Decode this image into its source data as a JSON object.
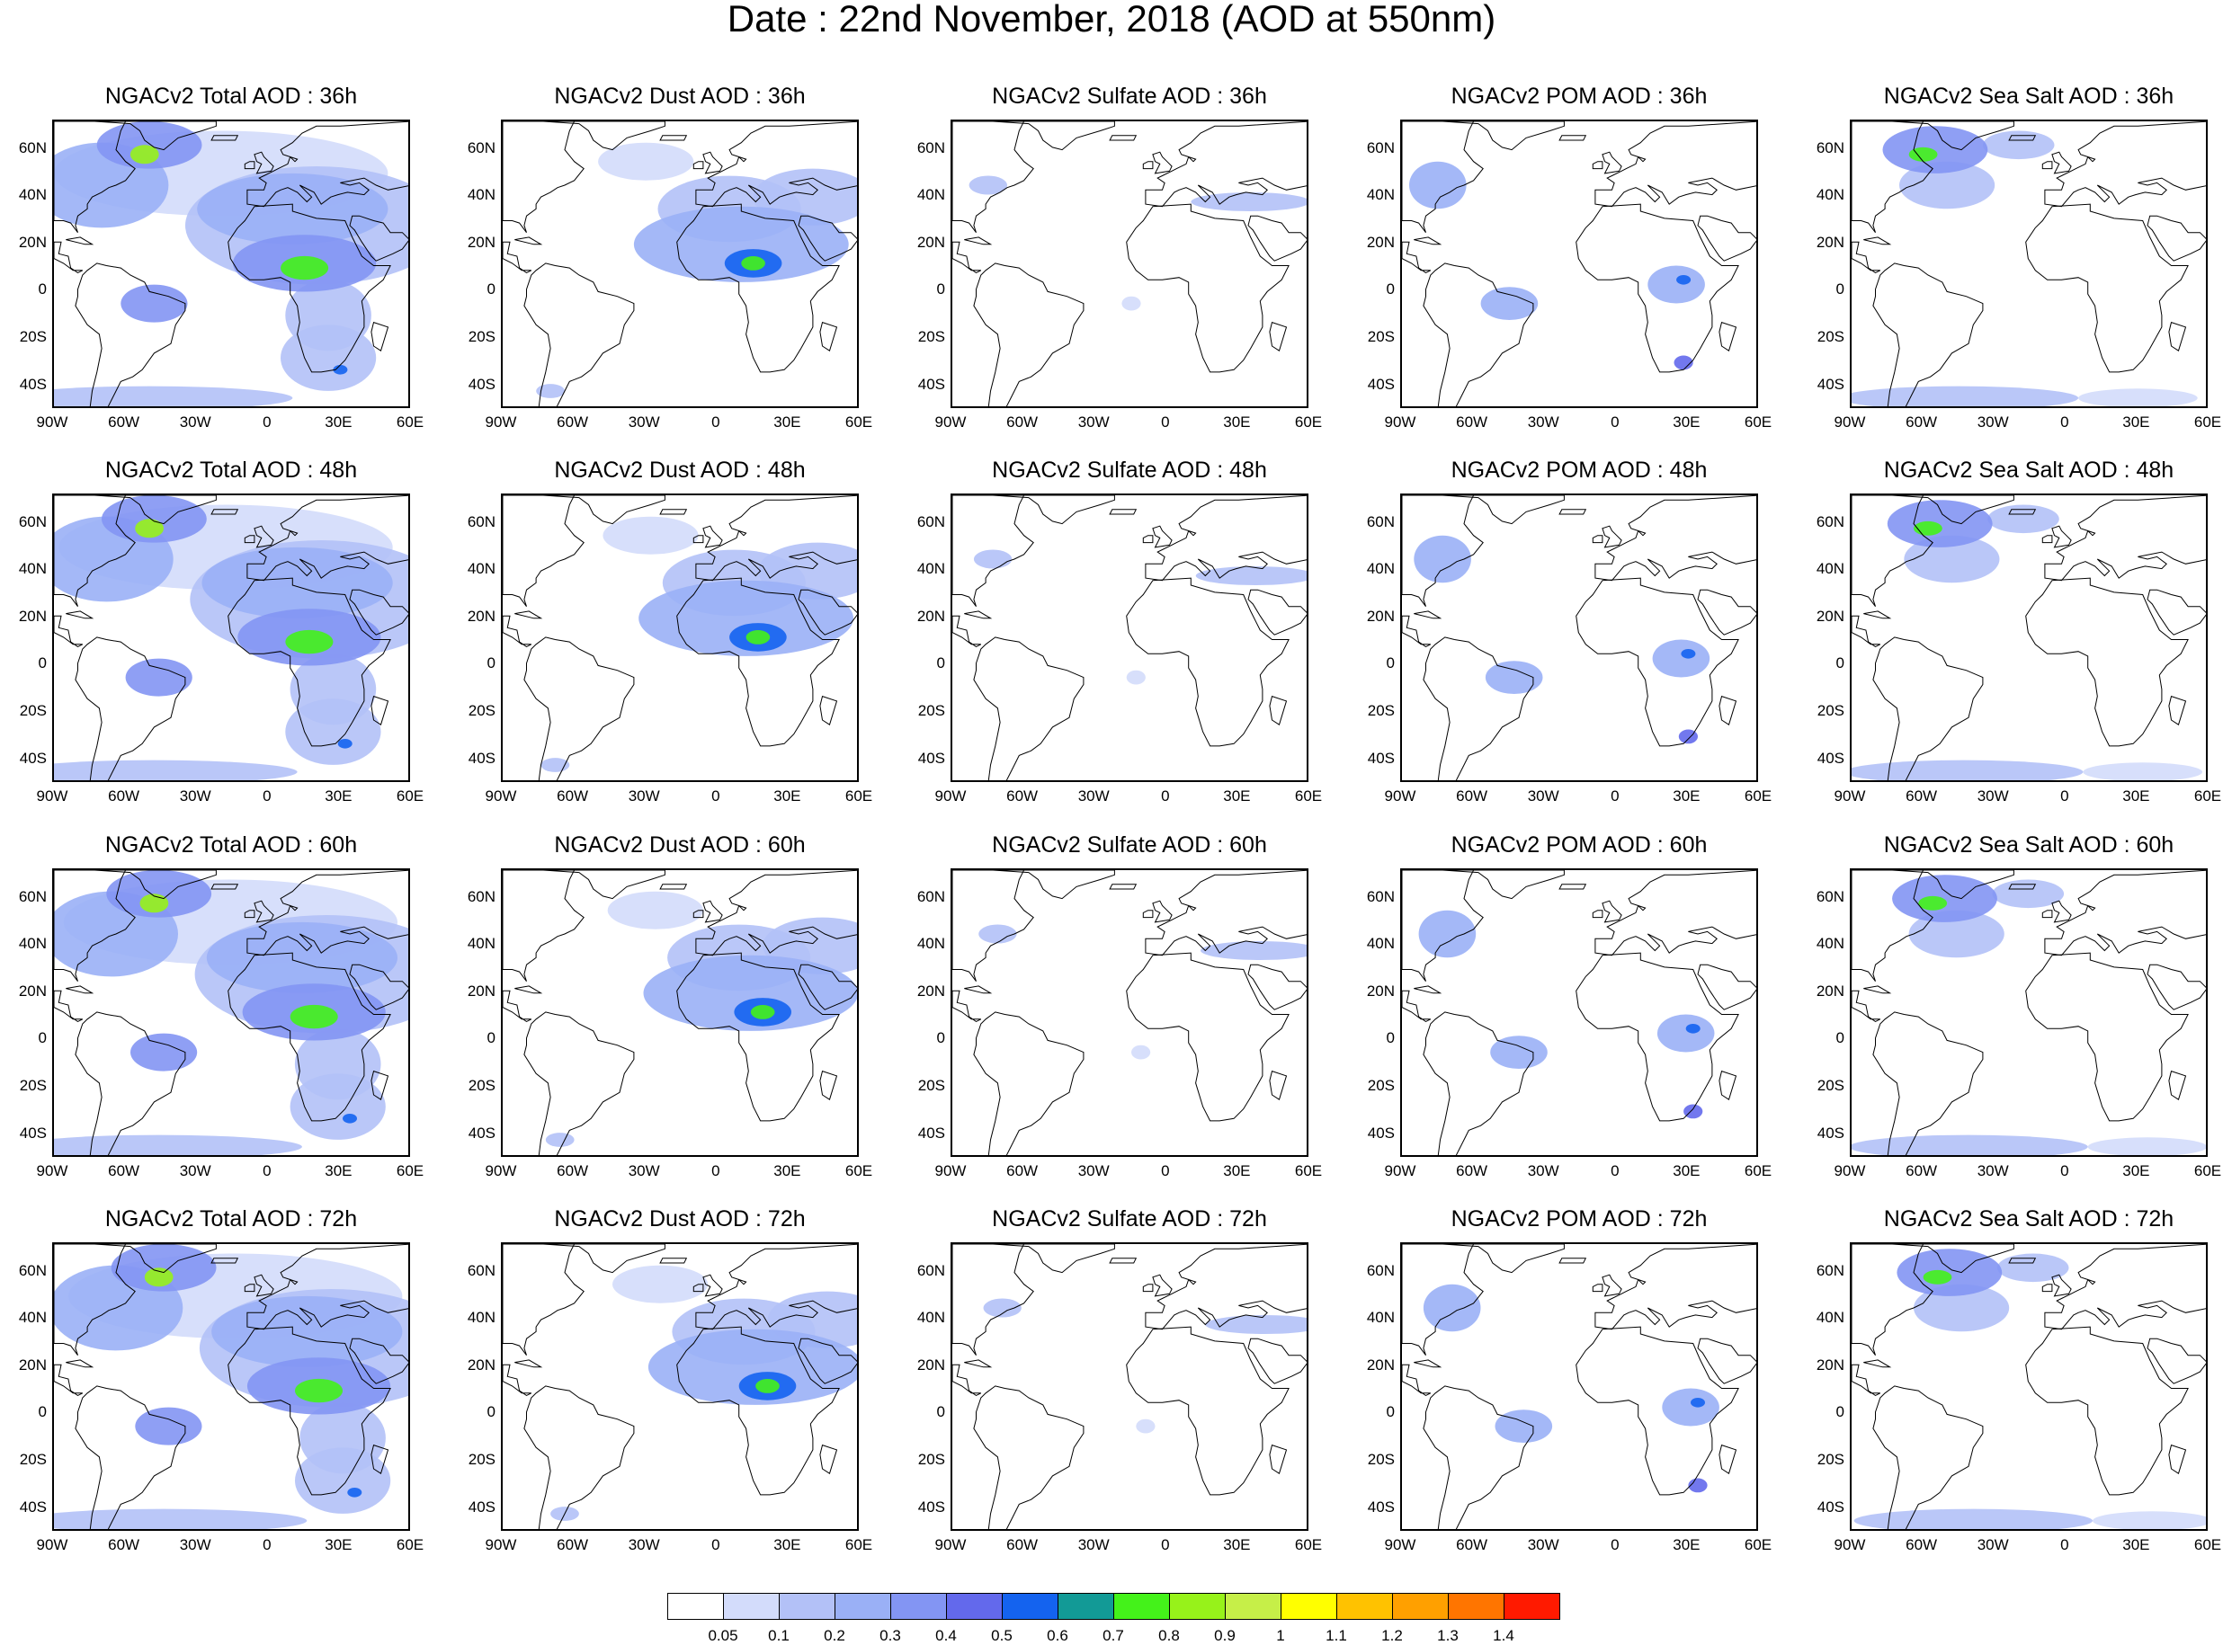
{
  "title": "Date : 22nd November, 2018 (AOD at 550nm)",
  "lat_ticks": [
    "60N",
    "40N",
    "20N",
    "0",
    "20S",
    "40S"
  ],
  "lon_ticks": [
    "90W",
    "60W",
    "30W",
    "0",
    "30E",
    "60E"
  ],
  "panels": [
    {
      "title": "NGACv2 Total AOD : 36h",
      "species": "total",
      "hour": 36
    },
    {
      "title": "NGACv2 Dust AOD : 36h",
      "species": "dust",
      "hour": 36
    },
    {
      "title": "NGACv2 Sulfate AOD : 36h",
      "species": "sulfate",
      "hour": 36
    },
    {
      "title": "NGACv2 POM AOD : 36h",
      "species": "pom",
      "hour": 36
    },
    {
      "title": "NGACv2 Sea Salt AOD : 36h",
      "species": "seasalt",
      "hour": 36
    },
    {
      "title": "NGACv2 Total AOD : 48h",
      "species": "total",
      "hour": 48
    },
    {
      "title": "NGACv2 Dust AOD : 48h",
      "species": "dust",
      "hour": 48
    },
    {
      "title": "NGACv2 Sulfate AOD : 48h",
      "species": "sulfate",
      "hour": 48
    },
    {
      "title": "NGACv2 POM AOD : 48h",
      "species": "pom",
      "hour": 48
    },
    {
      "title": "NGACv2 Sea Salt AOD : 48h",
      "species": "seasalt",
      "hour": 48
    },
    {
      "title": "NGACv2 Total AOD : 60h",
      "species": "total",
      "hour": 60
    },
    {
      "title": "NGACv2 Dust AOD : 60h",
      "species": "dust",
      "hour": 60
    },
    {
      "title": "NGACv2 Sulfate AOD : 60h",
      "species": "sulfate",
      "hour": 60
    },
    {
      "title": "NGACv2 POM AOD : 60h",
      "species": "pom",
      "hour": 60
    },
    {
      "title": "NGACv2 Sea Salt AOD : 60h",
      "species": "seasalt",
      "hour": 60
    },
    {
      "title": "NGACv2 Total AOD : 72h",
      "species": "total",
      "hour": 72
    },
    {
      "title": "NGACv2 Dust AOD : 72h",
      "species": "dust",
      "hour": 72
    },
    {
      "title": "NGACv2 Sulfate AOD : 72h",
      "species": "sulfate",
      "hour": 72
    },
    {
      "title": "NGACv2 POM AOD : 72h",
      "species": "pom",
      "hour": 72
    },
    {
      "title": "NGACv2 Sea Salt  AOD : 72h",
      "species": "seasalt",
      "hour": 72
    }
  ],
  "colorbar": {
    "labels": [
      "0.05",
      "0.1",
      "0.2",
      "0.3",
      "0.4",
      "0.5",
      "0.6",
      "0.7",
      "0.8",
      "0.9",
      "1",
      "1.1",
      "1.2",
      "1.3",
      "1.4"
    ],
    "colors": [
      "#ffffff",
      "#d3dcfb",
      "#b3c1f7",
      "#9ab0f6",
      "#8395f3",
      "#6369ec",
      "#1463ef",
      "#129a96",
      "#44f21a",
      "#97f21a",
      "#c6ef48",
      "#ffff00",
      "#ffc200",
      "#ffa000",
      "#ff7500",
      "#ff1a00"
    ]
  }
}
